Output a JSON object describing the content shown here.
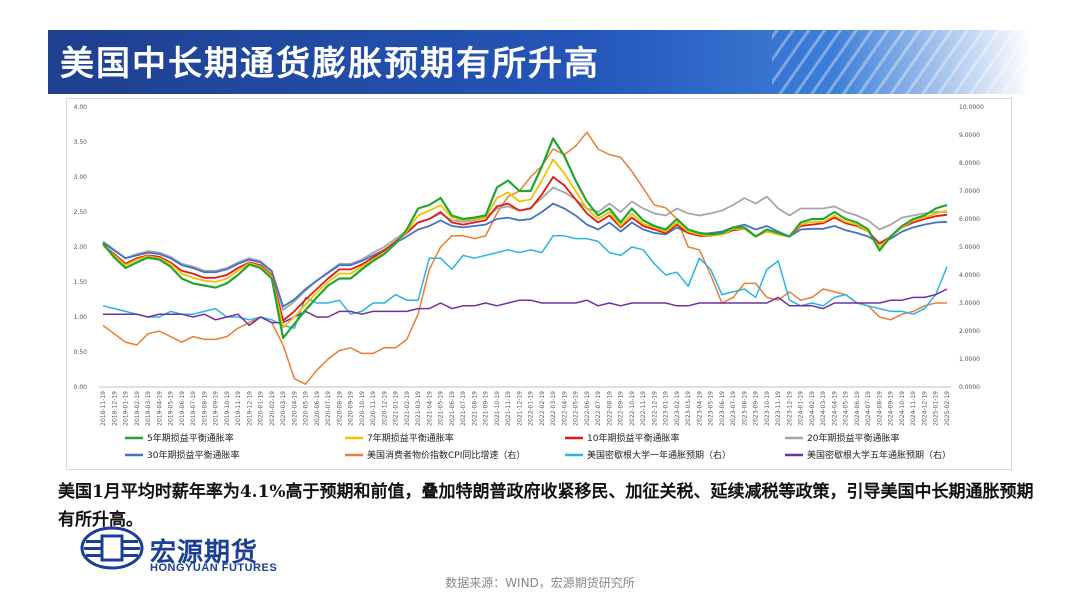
{
  "slide": {
    "title": "美国中长期通货膨胀预期有所升高",
    "description": "美国1月平均时薪年率为4.1%高于预期和前值，叠加特朗普政府收紧移民、加征关税、延续减税等政策，引导美国中长期通胀预期有所升高。",
    "source": "数据来源：WIND，宏源期货研究所"
  },
  "logo": {
    "name_cn": "宏源期货",
    "name_en": "HONGYUAN FUTURES",
    "color": "#1b3f95"
  },
  "chart_data": {
    "type": "line",
    "title": "",
    "y_left": {
      "ylim": [
        0,
        4
      ],
      "ticks": [
        "0.00",
        "0.50",
        "1.00",
        "1.50",
        "2.00",
        "2.50",
        "3.00",
        "3.50",
        "4.00"
      ]
    },
    "y_right": {
      "ylim": [
        0,
        10
      ],
      "ticks": [
        "0.0000",
        "1.0000",
        "2.0000",
        "3.0000",
        "4.0000",
        "5.0000",
        "6.0000",
        "7.0000",
        "8.0000",
        "9.0000",
        "10.0000"
      ]
    },
    "x_ticks": [
      "2018-11-19",
      "2018-12-19",
      "2019-01-19",
      "2019-02-19",
      "2019-03-19",
      "2019-04-19",
      "2019-05-19",
      "2019-06-19",
      "2019-07-19",
      "2019-08-19",
      "2019-09-19",
      "2019-10-19",
      "2019-11-19",
      "2019-12-19",
      "2020-01-19",
      "2020-02-19",
      "2020-03-19",
      "2020-04-19",
      "2020-05-19",
      "2020-06-19",
      "2020-07-19",
      "2020-08-19",
      "2020-09-19",
      "2020-10-19",
      "2020-11-19",
      "2020-12-19",
      "2021-01-19",
      "2021-02-19",
      "2021-03-19",
      "2021-04-19",
      "2021-05-19",
      "2021-06-19",
      "2021-07-19",
      "2021-08-19",
      "2021-09-19",
      "2021-10-19",
      "2021-11-19",
      "2021-12-19",
      "2022-01-19",
      "2022-02-19",
      "2022-03-19",
      "2022-04-19",
      "2022-05-19",
      "2022-06-19",
      "2022-07-19",
      "2022-08-19",
      "2022-09-19",
      "2022-10-19",
      "2022-11-19",
      "2022-12-19",
      "2023-01-19",
      "2023-02-19",
      "2023-03-19",
      "2023-04-19",
      "2023-05-19",
      "2023-06-19",
      "2023-07-19",
      "2023-08-19",
      "2023-09-19",
      "2023-10-19",
      "2023-11-19",
      "2023-12-19",
      "2024-01-19",
      "2024-02-19",
      "2024-03-19",
      "2024-04-19",
      "2024-05-19",
      "2024-06-19",
      "2024-07-19",
      "2024-08-19",
      "2024-09-19",
      "2024-10-19",
      "2024-11-19",
      "2024-12-19",
      "2025-01-19",
      "2025-02-19"
    ],
    "legend": {
      "placement": "bottom"
    },
    "series": [
      {
        "name": "5年期损益平衡通胀率",
        "axis": "left",
        "color": "#1fa532",
        "width": 2.2,
        "values": [
          2.05,
          1.85,
          1.7,
          1.78,
          1.85,
          1.82,
          1.72,
          1.55,
          1.48,
          1.45,
          1.42,
          1.48,
          1.6,
          1.75,
          1.7,
          1.55,
          0.7,
          0.9,
          1.1,
          1.28,
          1.45,
          1.55,
          1.55,
          1.68,
          1.8,
          1.9,
          2.05,
          2.25,
          2.55,
          2.6,
          2.7,
          2.45,
          2.4,
          2.42,
          2.45,
          2.85,
          2.95,
          2.8,
          2.8,
          3.15,
          3.55,
          3.3,
          2.95,
          2.65,
          2.45,
          2.55,
          2.35,
          2.55,
          2.38,
          2.3,
          2.25,
          2.4,
          2.25,
          2.2,
          2.18,
          2.2,
          2.28,
          2.28,
          2.15,
          2.25,
          2.2,
          2.15,
          2.35,
          2.4,
          2.4,
          2.5,
          2.4,
          2.35,
          2.25,
          1.95,
          2.15,
          2.3,
          2.4,
          2.45,
          2.55,
          2.6
        ]
      },
      {
        "name": "7年期损益平衡通胀率",
        "axis": "left",
        "color": "#f2c200",
        "width": 1.8,
        "values": [
          2.02,
          1.88,
          1.74,
          1.82,
          1.87,
          1.84,
          1.76,
          1.62,
          1.56,
          1.52,
          1.5,
          1.55,
          1.66,
          1.77,
          1.72,
          1.58,
          0.85,
          1.0,
          1.18,
          1.35,
          1.5,
          1.62,
          1.62,
          1.72,
          1.82,
          1.92,
          2.05,
          2.22,
          2.45,
          2.52,
          2.6,
          2.42,
          2.38,
          2.4,
          2.42,
          2.7,
          2.78,
          2.65,
          2.68,
          2.95,
          3.25,
          3.05,
          2.8,
          2.55,
          2.4,
          2.5,
          2.3,
          2.48,
          2.33,
          2.28,
          2.22,
          2.35,
          2.22,
          2.18,
          2.16,
          2.18,
          2.26,
          2.26,
          2.15,
          2.22,
          2.18,
          2.15,
          2.32,
          2.36,
          2.36,
          2.45,
          2.36,
          2.32,
          2.22,
          2.0,
          2.15,
          2.28,
          2.38,
          2.42,
          2.48,
          2.52
        ]
      },
      {
        "name": "10年期损益平衡通胀率",
        "axis": "left",
        "color": "#e01b1b",
        "width": 1.8,
        "values": [
          2.02,
          1.9,
          1.76,
          1.84,
          1.88,
          1.86,
          1.78,
          1.66,
          1.62,
          1.56,
          1.56,
          1.6,
          1.7,
          1.78,
          1.74,
          1.6,
          0.95,
          1.08,
          1.25,
          1.4,
          1.55,
          1.68,
          1.68,
          1.75,
          1.85,
          1.95,
          2.08,
          2.2,
          2.35,
          2.4,
          2.5,
          2.35,
          2.32,
          2.35,
          2.38,
          2.58,
          2.62,
          2.52,
          2.55,
          2.75,
          3.0,
          2.88,
          2.68,
          2.48,
          2.35,
          2.45,
          2.28,
          2.42,
          2.3,
          2.25,
          2.2,
          2.32,
          2.2,
          2.16,
          2.16,
          2.18,
          2.24,
          2.26,
          2.15,
          2.22,
          2.18,
          2.15,
          2.3,
          2.32,
          2.34,
          2.42,
          2.34,
          2.3,
          2.22,
          2.05,
          2.15,
          2.28,
          2.35,
          2.4,
          2.44,
          2.46
        ]
      },
      {
        "name": "20年期损益平衡通胀率",
        "axis": "left",
        "color": "#a6a6a6",
        "width": 1.8,
        "values": [
          2.08,
          1.96,
          1.84,
          1.9,
          1.94,
          1.92,
          1.86,
          1.76,
          1.72,
          1.66,
          1.66,
          1.7,
          1.78,
          1.84,
          1.8,
          1.66,
          1.1,
          1.22,
          1.38,
          1.52,
          1.64,
          1.76,
          1.76,
          1.82,
          1.92,
          2.0,
          2.12,
          2.22,
          2.35,
          2.4,
          2.48,
          2.38,
          2.36,
          2.38,
          2.42,
          2.55,
          2.58,
          2.52,
          2.56,
          2.7,
          2.85,
          2.78,
          2.68,
          2.55,
          2.5,
          2.62,
          2.5,
          2.65,
          2.55,
          2.48,
          2.45,
          2.55,
          2.48,
          2.45,
          2.48,
          2.52,
          2.6,
          2.7,
          2.62,
          2.72,
          2.55,
          2.45,
          2.55,
          2.55,
          2.55,
          2.58,
          2.5,
          2.45,
          2.38,
          2.25,
          2.32,
          2.42,
          2.45,
          2.48,
          2.5,
          2.5
        ]
      },
      {
        "name": "30年期损益平衡通胀率",
        "axis": "left",
        "color": "#4472c4",
        "width": 1.8,
        "values": [
          2.06,
          1.95,
          1.84,
          1.88,
          1.92,
          1.9,
          1.84,
          1.74,
          1.7,
          1.64,
          1.64,
          1.68,
          1.76,
          1.82,
          1.78,
          1.65,
          1.15,
          1.25,
          1.4,
          1.52,
          1.63,
          1.74,
          1.74,
          1.8,
          1.88,
          1.96,
          2.06,
          2.15,
          2.25,
          2.3,
          2.38,
          2.3,
          2.28,
          2.3,
          2.32,
          2.4,
          2.42,
          2.38,
          2.4,
          2.5,
          2.62,
          2.55,
          2.45,
          2.32,
          2.25,
          2.35,
          2.22,
          2.35,
          2.25,
          2.2,
          2.18,
          2.28,
          2.2,
          2.18,
          2.2,
          2.22,
          2.28,
          2.32,
          2.25,
          2.3,
          2.22,
          2.15,
          2.25,
          2.26,
          2.26,
          2.3,
          2.24,
          2.2,
          2.15,
          2.05,
          2.12,
          2.22,
          2.28,
          2.32,
          2.35,
          2.36
        ]
      },
      {
        "name": "美国消费者物价指数CPI同比增速（右）",
        "axis": "right",
        "color": "#ed7d31",
        "width": 1.5,
        "values": [
          2.2,
          1.9,
          1.6,
          1.5,
          1.9,
          2.0,
          1.8,
          1.6,
          1.8,
          1.7,
          1.7,
          1.8,
          2.1,
          2.3,
          2.5,
          2.3,
          1.5,
          0.3,
          0.1,
          0.6,
          1.0,
          1.3,
          1.4,
          1.2,
          1.2,
          1.4,
          1.4,
          1.7,
          2.6,
          4.2,
          5.0,
          5.4,
          5.4,
          5.3,
          5.4,
          6.2,
          6.8,
          7.0,
          7.5,
          7.9,
          8.5,
          8.3,
          8.6,
          9.1,
          8.5,
          8.3,
          8.2,
          7.7,
          7.1,
          6.5,
          6.4,
          6.0,
          5.0,
          4.9,
          4.0,
          3.0,
          3.2,
          3.7,
          3.7,
          3.2,
          3.1,
          3.4,
          3.1,
          3.2,
          3.5,
          3.4,
          3.3,
          3.0,
          2.9,
          2.5,
          2.4,
          2.6,
          2.7,
          2.9,
          3.0,
          3.0
        ]
      },
      {
        "name": "美国密歇根大学一年通胀预期（右）",
        "axis": "right",
        "color": "#2ab4e6",
        "width": 1.5,
        "values": [
          2.9,
          2.8,
          2.7,
          2.6,
          2.5,
          2.5,
          2.7,
          2.6,
          2.6,
          2.7,
          2.8,
          2.5,
          2.5,
          2.4,
          2.5,
          2.4,
          2.2,
          2.1,
          3.2,
          3.0,
          3.0,
          3.1,
          2.6,
          2.7,
          3.0,
          3.0,
          3.3,
          3.1,
          3.1,
          4.6,
          4.6,
          4.2,
          4.7,
          4.6,
          4.7,
          4.8,
          4.9,
          4.8,
          4.9,
          4.8,
          5.4,
          5.4,
          5.3,
          5.3,
          5.2,
          4.8,
          4.7,
          5.0,
          4.9,
          4.4,
          4.0,
          4.1,
          3.6,
          4.6,
          4.2,
          3.3,
          3.4,
          3.5,
          3.2,
          4.2,
          4.5,
          3.1,
          2.9,
          3.0,
          2.9,
          3.2,
          3.3,
          3.0,
          2.9,
          2.8,
          2.7,
          2.7,
          2.6,
          2.8,
          3.3,
          4.3
        ]
      },
      {
        "name": "美国密歇根大学五年通胀预期（右）",
        "axis": "right",
        "color": "#7030a0",
        "width": 1.5,
        "values": [
          2.6,
          2.6,
          2.6,
          2.6,
          2.5,
          2.6,
          2.6,
          2.6,
          2.5,
          2.6,
          2.4,
          2.5,
          2.6,
          2.2,
          2.5,
          2.3,
          2.3,
          2.5,
          2.7,
          2.5,
          2.5,
          2.7,
          2.7,
          2.6,
          2.7,
          2.7,
          2.7,
          2.7,
          2.8,
          2.8,
          3.0,
          2.8,
          2.9,
          2.9,
          3.0,
          2.9,
          3.0,
          3.1,
          3.1,
          3.0,
          3.0,
          3.0,
          3.0,
          3.1,
          2.9,
          3.0,
          2.9,
          3.0,
          3.0,
          3.0,
          3.0,
          2.9,
          2.9,
          3.0,
          3.0,
          3.0,
          3.0,
          3.0,
          3.0,
          3.0,
          3.2,
          2.9,
          2.9,
          2.9,
          2.8,
          3.0,
          3.0,
          3.0,
          3.0,
          3.0,
          3.1,
          3.1,
          3.2,
          3.2,
          3.3,
          3.5
        ]
      }
    ]
  }
}
